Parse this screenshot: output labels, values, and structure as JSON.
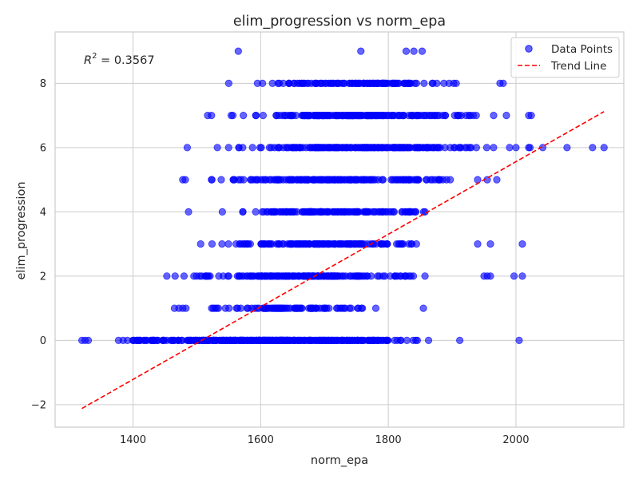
{
  "chart_data": {
    "type": "scatter",
    "title": "elim_progression vs norm_epa",
    "xlabel": "norm_epa",
    "ylabel": "elim_progression",
    "xlim": [
      1278,
      2169
    ],
    "ylim": [
      -2.7,
      9.6
    ],
    "xticks": [
      1400,
      1600,
      1800,
      2000
    ],
    "yticks": [
      -2,
      0,
      2,
      4,
      6,
      8
    ],
    "ytick_labels": [
      "−2",
      "0",
      "2",
      "4",
      "6",
      "8"
    ],
    "grid": true,
    "legend_position": "top-right",
    "annotation": {
      "prefix": "R",
      "sup": "2",
      "text": " = 0.3567"
    },
    "colors": {
      "points": "#0000ff",
      "trend": "#ff0000",
      "grid": "#cccccc",
      "spine": "#cccccc"
    },
    "series": [
      {
        "name": "Data Points",
        "kind": "scatter",
        "bands": [
          {
            "y": 0,
            "xmin": 1345,
            "xmax": 1875,
            "n": 380
          },
          {
            "y": 1,
            "xmin": 1515,
            "xmax": 1790,
            "n": 85
          },
          {
            "y": 2,
            "xmin": 1475,
            "xmax": 1875,
            "n": 180
          },
          {
            "y": 3,
            "xmin": 1520,
            "xmax": 1870,
            "n": 150
          },
          {
            "y": 4,
            "xmin": 1555,
            "xmax": 1875,
            "n": 140
          },
          {
            "y": 5,
            "xmin": 1510,
            "xmax": 1930,
            "n": 160
          },
          {
            "y": 6,
            "xmin": 1515,
            "xmax": 1975,
            "n": 190
          },
          {
            "y": 7,
            "xmin": 1530,
            "xmax": 1955,
            "n": 170
          },
          {
            "y": 8,
            "xmin": 1590,
            "xmax": 1930,
            "n": 120
          }
        ],
        "extra_points": [
          [
            1320,
            0
          ],
          [
            1325,
            0
          ],
          [
            1330,
            0
          ],
          [
            1912,
            0
          ],
          [
            2005,
            0
          ],
          [
            1465,
            1
          ],
          [
            1472,
            1
          ],
          [
            1478,
            1
          ],
          [
            1483,
            1
          ],
          [
            1855,
            1
          ],
          [
            1453,
            2
          ],
          [
            1466,
            2
          ],
          [
            1480,
            2
          ],
          [
            1950,
            2
          ],
          [
            1955,
            2
          ],
          [
            1960,
            2
          ],
          [
            1997,
            2
          ],
          [
            2010,
            2
          ],
          [
            1506,
            3
          ],
          [
            1940,
            3
          ],
          [
            1960,
            3
          ],
          [
            2010,
            3
          ],
          [
            1487,
            4
          ],
          [
            1540,
            4
          ],
          [
            1478,
            5
          ],
          [
            1482,
            5
          ],
          [
            1940,
            5
          ],
          [
            1955,
            5
          ],
          [
            1970,
            5
          ],
          [
            1485,
            6
          ],
          [
            1990,
            6
          ],
          [
            2000,
            6
          ],
          [
            2020,
            6
          ],
          [
            2022,
            6
          ],
          [
            2042,
            6
          ],
          [
            2080,
            6
          ],
          [
            2120,
            6
          ],
          [
            2138,
            6
          ],
          [
            1517,
            7
          ],
          [
            1523,
            7
          ],
          [
            1965,
            7
          ],
          [
            1985,
            7
          ],
          [
            2020,
            7
          ],
          [
            2024,
            7
          ],
          [
            1550,
            8
          ],
          [
            1595,
            8
          ],
          [
            1975,
            8
          ],
          [
            1980,
            8
          ],
          [
            1565,
            9
          ],
          [
            1757,
            9
          ],
          [
            1828,
            9
          ],
          [
            1840,
            9
          ],
          [
            1853,
            9
          ]
        ]
      },
      {
        "name": "Trend Line",
        "kind": "line",
        "x": [
          1320,
          2138
        ],
        "y": [
          -2.12,
          7.12
        ]
      }
    ]
  }
}
